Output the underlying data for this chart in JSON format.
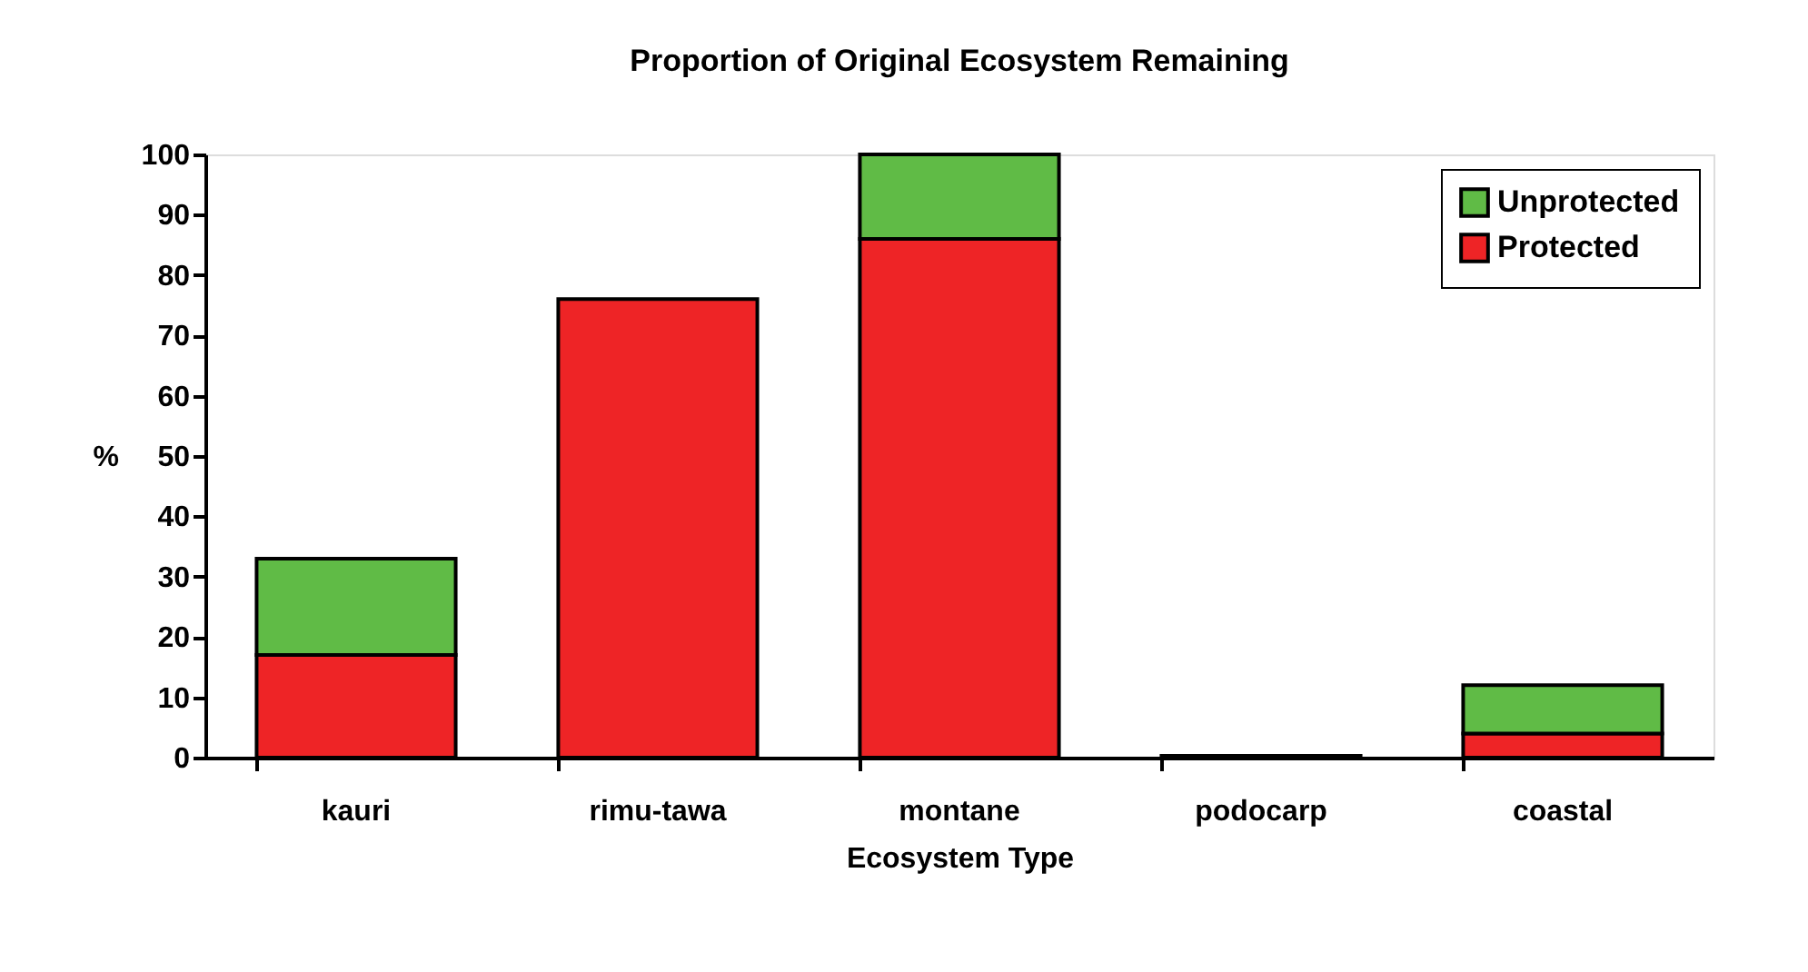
{
  "chart_data": {
    "type": "bar",
    "title": "Proportion of Original Ecosystem  Remaining",
    "xlabel": "Ecosystem Type",
    "ylabel": "%",
    "categories": [
      "kauri",
      "rimu-tawa",
      "montane",
      "podocarp",
      "coastal"
    ],
    "stacked": true,
    "series": [
      {
        "name": "Protected",
        "color": "#ee2426",
        "values": [
          17,
          76,
          86,
          0.3,
          4
        ]
      },
      {
        "name": "Unprotected",
        "color": "#60bb46",
        "values": [
          16,
          null,
          14,
          null,
          8
        ]
      }
    ],
    "ylim": [
      0,
      100
    ],
    "yticks": [
      0,
      10,
      20,
      30,
      40,
      50,
      60,
      70,
      80,
      90,
      100
    ],
    "grid": false,
    "legend": "top right"
  }
}
